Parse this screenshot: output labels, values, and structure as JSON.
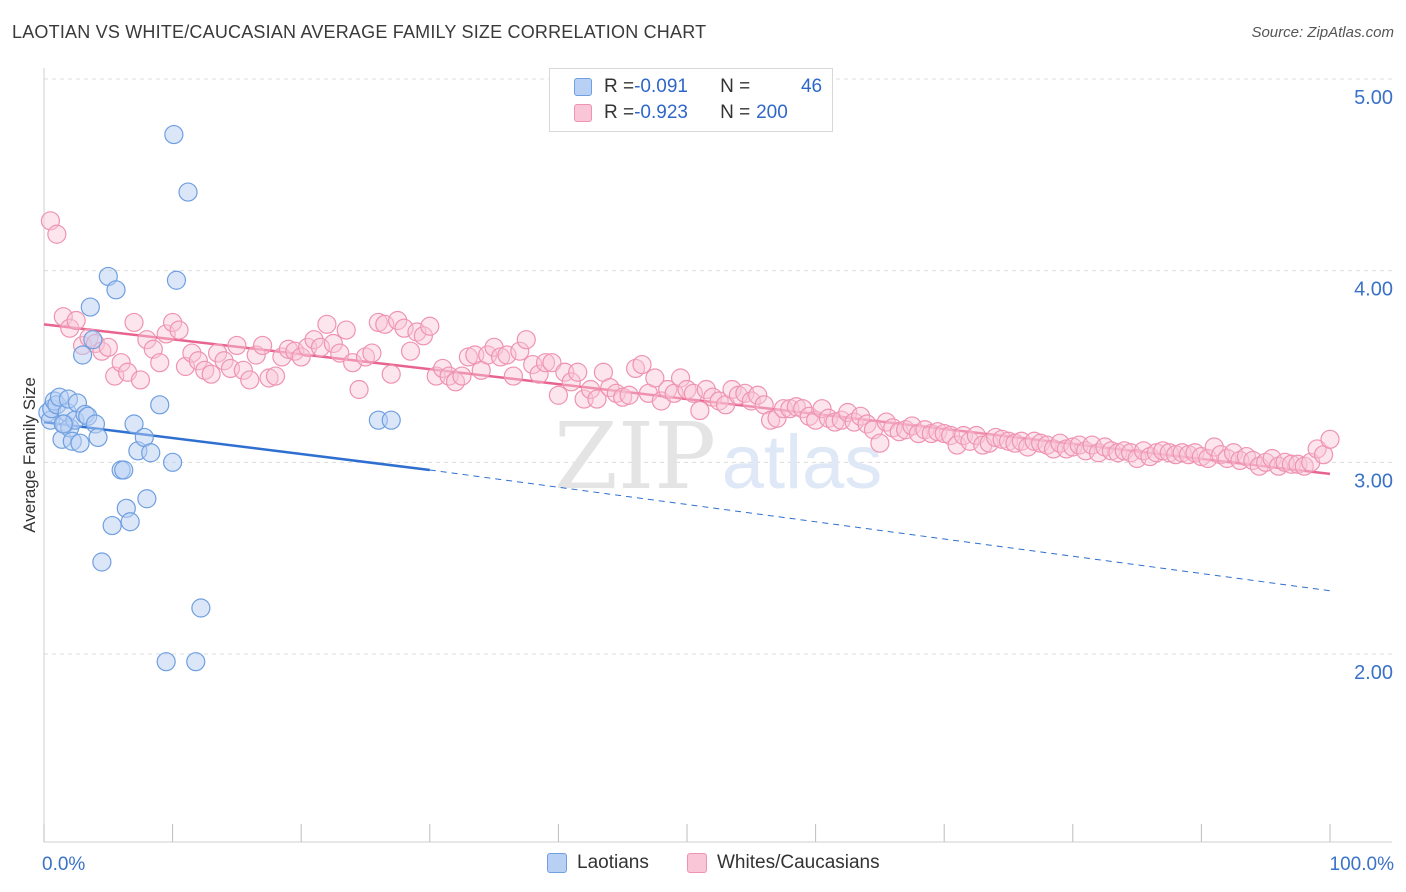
{
  "title": "LAOTIAN VS WHITE/CAUCASIAN AVERAGE FAMILY SIZE CORRELATION CHART",
  "source": "Source: ZipAtlas.com",
  "watermark": {
    "zip": "ZIP",
    "atlas": "atlas"
  },
  "colors": {
    "laotian_fill": "#b8d0f4",
    "laotian_stroke": "#6f9fe0",
    "laotian_line": "#2f6fd0",
    "white_fill": "#f8c6d6",
    "white_stroke": "#ef93b0",
    "white_line": "#e8648f",
    "tick_label": "#3a72c8",
    "grid": "#dcdcdc"
  },
  "legend": {
    "rows": [
      {
        "r_label": "R = ",
        "r_value": "-0.091",
        "n_label": "N = ",
        "n_value": "46"
      },
      {
        "r_label": "R = ",
        "r_value": "-0.923",
        "n_label": "N = ",
        "n_value": "200"
      }
    ]
  },
  "chart_data": {
    "type": "scatter",
    "title": "LAOTIAN VS WHITE/CAUCASIAN AVERAGE FAMILY SIZE CORRELATION CHART",
    "xlabel": "",
    "ylabel": "Average Family Size",
    "xlim": [
      0,
      100
    ],
    "ylim": [
      1.0,
      5.15
    ],
    "x_tick_labels": [
      "0.0%",
      "100.0%"
    ],
    "y_ticks": [
      5.0,
      4.0,
      3.0,
      2.0
    ],
    "y_tick_labels": [
      "5.00",
      "4.00",
      "3.00",
      "2.00"
    ],
    "grid": "horizontal dashed",
    "legend_position": "top-center and bottom",
    "series": [
      {
        "name": "Laotians",
        "r": -0.091,
        "n": 46,
        "trend": {
          "x0": 0,
          "y0": 3.21,
          "x1": 30,
          "y1": 2.96,
          "dashed_to_x": 100,
          "dashed_to_y": 2.33
        },
        "points": [
          [
            0.3,
            3.26
          ],
          [
            0.5,
            3.22
          ],
          [
            0.6,
            3.28
          ],
          [
            0.8,
            3.32
          ],
          [
            1.0,
            3.3
          ],
          [
            1.2,
            3.34
          ],
          [
            1.4,
            3.12
          ],
          [
            1.6,
            3.2
          ],
          [
            1.8,
            3.26
          ],
          [
            1.9,
            3.33
          ],
          [
            2.0,
            3.18
          ],
          [
            2.2,
            3.11
          ],
          [
            2.4,
            3.22
          ],
          [
            2.6,
            3.31
          ],
          [
            2.8,
            3.1
          ],
          [
            3.0,
            3.56
          ],
          [
            3.2,
            3.25
          ],
          [
            3.4,
            3.24
          ],
          [
            3.6,
            3.81
          ],
          [
            3.8,
            3.64
          ],
          [
            4.0,
            3.2
          ],
          [
            4.2,
            3.13
          ],
          [
            4.5,
            2.48
          ],
          [
            5.0,
            3.97
          ],
          [
            5.3,
            2.67
          ],
          [
            5.6,
            3.9
          ],
          [
            6.0,
            2.96
          ],
          [
            6.2,
            2.96
          ],
          [
            6.4,
            2.76
          ],
          [
            6.7,
            2.69
          ],
          [
            7.0,
            3.2
          ],
          [
            7.3,
            3.06
          ],
          [
            7.8,
            3.13
          ],
          [
            8.0,
            2.81
          ],
          [
            8.3,
            3.05
          ],
          [
            9.0,
            3.3
          ],
          [
            9.5,
            1.96
          ],
          [
            10.0,
            3.0
          ],
          [
            10.3,
            3.95
          ],
          [
            11.2,
            4.41
          ],
          [
            11.8,
            1.96
          ],
          [
            12.2,
            2.24
          ],
          [
            10.1,
            4.71
          ],
          [
            26.0,
            3.22
          ],
          [
            27.0,
            3.22
          ],
          [
            1.5,
            3.2
          ]
        ]
      },
      {
        "name": "Whites/Caucasians",
        "r": -0.923,
        "n": 200,
        "trend": {
          "x0": 0,
          "y0": 3.72,
          "x1": 100,
          "y1": 2.94
        },
        "points": [
          [
            0.5,
            4.26
          ],
          [
            1.0,
            4.19
          ],
          [
            1.5,
            3.76
          ],
          [
            2.0,
            3.7
          ],
          [
            2.5,
            3.74
          ],
          [
            3.0,
            3.61
          ],
          [
            3.5,
            3.65
          ],
          [
            4.0,
            3.62
          ],
          [
            4.5,
            3.58
          ],
          [
            5.0,
            3.6
          ],
          [
            5.5,
            3.45
          ],
          [
            6.0,
            3.52
          ],
          [
            6.5,
            3.47
          ],
          [
            7.0,
            3.73
          ],
          [
            7.5,
            3.43
          ],
          [
            8.0,
            3.64
          ],
          [
            8.5,
            3.59
          ],
          [
            9.0,
            3.52
          ],
          [
            9.5,
            3.67
          ],
          [
            10.0,
            3.73
          ],
          [
            10.5,
            3.69
          ],
          [
            11.0,
            3.5
          ],
          [
            11.5,
            3.57
          ],
          [
            12.0,
            3.53
          ],
          [
            12.5,
            3.48
          ],
          [
            13.0,
            3.46
          ],
          [
            13.5,
            3.57
          ],
          [
            14.0,
            3.53
          ],
          [
            14.5,
            3.49
          ],
          [
            15.0,
            3.61
          ],
          [
            15.5,
            3.48
          ],
          [
            16.0,
            3.43
          ],
          [
            16.5,
            3.56
          ],
          [
            17.0,
            3.61
          ],
          [
            17.5,
            3.44
          ],
          [
            18.0,
            3.45
          ],
          [
            18.5,
            3.55
          ],
          [
            19.0,
            3.59
          ],
          [
            19.5,
            3.58
          ],
          [
            20.0,
            3.55
          ],
          [
            20.5,
            3.6
          ],
          [
            21.0,
            3.64
          ],
          [
            21.5,
            3.6
          ],
          [
            22.0,
            3.72
          ],
          [
            22.5,
            3.62
          ],
          [
            23.0,
            3.57
          ],
          [
            23.5,
            3.69
          ],
          [
            24.0,
            3.52
          ],
          [
            24.5,
            3.38
          ],
          [
            25.0,
            3.55
          ],
          [
            25.5,
            3.57
          ],
          [
            26.0,
            3.73
          ],
          [
            26.5,
            3.72
          ],
          [
            27.0,
            3.46
          ],
          [
            27.5,
            3.74
          ],
          [
            28.0,
            3.7
          ],
          [
            28.5,
            3.58
          ],
          [
            29.0,
            3.68
          ],
          [
            29.5,
            3.66
          ],
          [
            30.0,
            3.71
          ],
          [
            30.5,
            3.45
          ],
          [
            31.0,
            3.49
          ],
          [
            31.5,
            3.45
          ],
          [
            32.0,
            3.42
          ],
          [
            32.5,
            3.45
          ],
          [
            33.0,
            3.55
          ],
          [
            33.5,
            3.56
          ],
          [
            34.0,
            3.48
          ],
          [
            34.5,
            3.56
          ],
          [
            35.0,
            3.6
          ],
          [
            35.5,
            3.55
          ],
          [
            36.0,
            3.56
          ],
          [
            36.5,
            3.45
          ],
          [
            37.0,
            3.58
          ],
          [
            37.5,
            3.64
          ],
          [
            38.0,
            3.51
          ],
          [
            38.5,
            3.46
          ],
          [
            39.0,
            3.52
          ],
          [
            39.5,
            3.52
          ],
          [
            40.0,
            3.35
          ],
          [
            40.5,
            3.47
          ],
          [
            41.0,
            3.42
          ],
          [
            41.5,
            3.47
          ],
          [
            42.0,
            3.33
          ],
          [
            42.5,
            3.38
          ],
          [
            43.0,
            3.33
          ],
          [
            43.5,
            3.47
          ],
          [
            44.0,
            3.39
          ],
          [
            44.5,
            3.36
          ],
          [
            45.0,
            3.34
          ],
          [
            45.5,
            3.35
          ],
          [
            46.0,
            3.49
          ],
          [
            46.5,
            3.51
          ],
          [
            47.0,
            3.36
          ],
          [
            47.5,
            3.44
          ],
          [
            48.0,
            3.32
          ],
          [
            48.5,
            3.38
          ],
          [
            49.0,
            3.36
          ],
          [
            49.5,
            3.44
          ],
          [
            50.0,
            3.38
          ],
          [
            50.5,
            3.36
          ],
          [
            51.0,
            3.27
          ],
          [
            51.5,
            3.38
          ],
          [
            52.0,
            3.34
          ],
          [
            52.5,
            3.32
          ],
          [
            53.0,
            3.3
          ],
          [
            53.5,
            3.38
          ],
          [
            54.0,
            3.35
          ],
          [
            54.5,
            3.36
          ],
          [
            55.0,
            3.32
          ],
          [
            55.5,
            3.35
          ],
          [
            56.0,
            3.3
          ],
          [
            56.5,
            3.22
          ],
          [
            57.0,
            3.23
          ],
          [
            57.5,
            3.28
          ],
          [
            58.0,
            3.28
          ],
          [
            58.5,
            3.29
          ],
          [
            59.0,
            3.28
          ],
          [
            59.5,
            3.24
          ],
          [
            60.0,
            3.22
          ],
          [
            60.5,
            3.28
          ],
          [
            61.0,
            3.23
          ],
          [
            61.5,
            3.21
          ],
          [
            62.0,
            3.22
          ],
          [
            62.5,
            3.26
          ],
          [
            63.0,
            3.21
          ],
          [
            63.5,
            3.24
          ],
          [
            64.0,
            3.2
          ],
          [
            64.5,
            3.17
          ],
          [
            65.0,
            3.1
          ],
          [
            65.5,
            3.21
          ],
          [
            66.0,
            3.18
          ],
          [
            66.5,
            3.16
          ],
          [
            67.0,
            3.17
          ],
          [
            67.5,
            3.19
          ],
          [
            68.0,
            3.15
          ],
          [
            68.5,
            3.17
          ],
          [
            69.0,
            3.15
          ],
          [
            69.5,
            3.16
          ],
          [
            70.0,
            3.15
          ],
          [
            70.5,
            3.14
          ],
          [
            71.0,
            3.09
          ],
          [
            71.5,
            3.14
          ],
          [
            72.0,
            3.11
          ],
          [
            72.5,
            3.14
          ],
          [
            73.0,
            3.09
          ],
          [
            73.5,
            3.1
          ],
          [
            74.0,
            3.13
          ],
          [
            74.5,
            3.12
          ],
          [
            75.0,
            3.11
          ],
          [
            75.5,
            3.1
          ],
          [
            76.0,
            3.11
          ],
          [
            76.5,
            3.08
          ],
          [
            77.0,
            3.11
          ],
          [
            77.5,
            3.1
          ],
          [
            78.0,
            3.09
          ],
          [
            78.5,
            3.07
          ],
          [
            79.0,
            3.1
          ],
          [
            79.5,
            3.07
          ],
          [
            80.0,
            3.08
          ],
          [
            80.5,
            3.09
          ],
          [
            81.0,
            3.06
          ],
          [
            81.5,
            3.09
          ],
          [
            82.0,
            3.05
          ],
          [
            82.5,
            3.08
          ],
          [
            83.0,
            3.06
          ],
          [
            83.5,
            3.05
          ],
          [
            84.0,
            3.06
          ],
          [
            84.5,
            3.05
          ],
          [
            85.0,
            3.02
          ],
          [
            85.5,
            3.06
          ],
          [
            86.0,
            3.03
          ],
          [
            86.5,
            3.05
          ],
          [
            87.0,
            3.06
          ],
          [
            87.5,
            3.05
          ],
          [
            88.0,
            3.04
          ],
          [
            88.5,
            3.05
          ],
          [
            89.0,
            3.04
          ],
          [
            89.5,
            3.05
          ],
          [
            90.0,
            3.03
          ],
          [
            90.5,
            3.02
          ],
          [
            91.0,
            3.08
          ],
          [
            91.5,
            3.04
          ],
          [
            92.0,
            3.02
          ],
          [
            92.5,
            3.05
          ],
          [
            93.0,
            3.01
          ],
          [
            93.5,
            3.03
          ],
          [
            94.0,
            3.01
          ],
          [
            94.5,
            2.98
          ],
          [
            95.0,
            3.0
          ],
          [
            95.5,
            3.02
          ],
          [
            96.0,
            2.98
          ],
          [
            96.5,
            3.0
          ],
          [
            97.0,
            2.99
          ],
          [
            97.5,
            2.99
          ],
          [
            98.0,
            2.98
          ],
          [
            98.5,
            3.0
          ],
          [
            99.0,
            3.07
          ],
          [
            99.5,
            3.04
          ],
          [
            100.0,
            3.12
          ]
        ]
      }
    ]
  }
}
